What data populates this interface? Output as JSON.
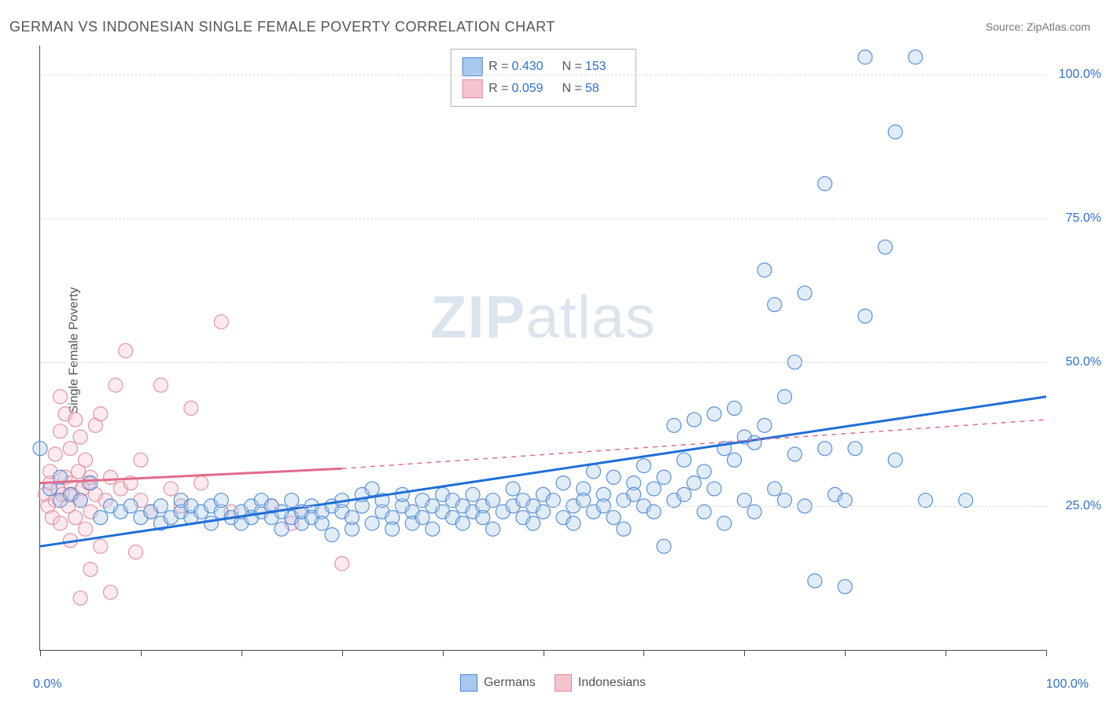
{
  "title": "GERMAN VS INDONESIAN SINGLE FEMALE POVERTY CORRELATION CHART",
  "source_prefix": "Source: ",
  "source": "ZipAtlas.com",
  "ylabel": "Single Female Poverty",
  "watermark_bold": "ZIP",
  "watermark_light": "atlas",
  "chart": {
    "type": "scatter",
    "background_color": "#ffffff",
    "grid_color": "#dcdcdc",
    "grid_dash": "4,4",
    "axis_color": "#4a4a4a",
    "label_color": "#555555",
    "value_color": "#2f6fd0",
    "title_fontsize": 18,
    "label_fontsize": 16,
    "xlim": [
      0,
      100
    ],
    "ylim": [
      0,
      105
    ],
    "yticks": [
      25,
      50,
      75,
      100
    ],
    "ytick_labels": [
      "25.0%",
      "50.0%",
      "75.0%",
      "100.0%"
    ],
    "xticks": [
      0,
      10,
      20,
      30,
      40,
      50,
      60,
      70,
      80,
      90,
      100
    ],
    "x_start_label": "0.0%",
    "x_end_label": "100.0%",
    "marker_radius": 9,
    "marker_stroke_width": 1.2,
    "marker_opacity_fill": 0.35,
    "marker_opacity_stroke": 0.9,
    "trend_line_width": 3,
    "series": [
      {
        "name": "Germans",
        "fill": "#a9c8ee",
        "stroke": "#4a86d2",
        "line_color": "#1f6fd8",
        "dash_extension_color": "#1f6fd8",
        "R_label": "R =",
        "R": "0.430",
        "N_label": "N =",
        "N": "153",
        "trend": {
          "x1": 0,
          "y1": 18,
          "x2": 100,
          "y2": 44,
          "dash_from_x": 100
        },
        "points": [
          [
            0,
            35
          ],
          [
            1,
            28
          ],
          [
            2,
            30
          ],
          [
            2,
            26
          ],
          [
            3,
            27
          ],
          [
            4,
            26
          ],
          [
            5,
            29
          ],
          [
            6,
            23
          ],
          [
            7,
            25
          ],
          [
            8,
            24
          ],
          [
            9,
            25
          ],
          [
            10,
            23
          ],
          [
            11,
            24
          ],
          [
            12,
            25
          ],
          [
            12,
            22
          ],
          [
            13,
            23
          ],
          [
            14,
            24
          ],
          [
            14,
            26
          ],
          [
            15,
            23
          ],
          [
            15,
            25
          ],
          [
            16,
            24
          ],
          [
            17,
            25
          ],
          [
            17,
            22
          ],
          [
            18,
            24
          ],
          [
            18,
            26
          ],
          [
            19,
            23
          ],
          [
            20,
            22
          ],
          [
            20,
            24
          ],
          [
            21,
            25
          ],
          [
            21,
            23
          ],
          [
            22,
            24
          ],
          [
            22,
            26
          ],
          [
            23,
            23
          ],
          [
            23,
            25
          ],
          [
            24,
            21
          ],
          [
            24,
            24
          ],
          [
            25,
            23
          ],
          [
            25,
            26
          ],
          [
            26,
            22
          ],
          [
            26,
            24
          ],
          [
            27,
            25
          ],
          [
            27,
            23
          ],
          [
            28,
            24
          ],
          [
            28,
            22
          ],
          [
            29,
            25
          ],
          [
            29,
            20
          ],
          [
            30,
            24
          ],
          [
            30,
            26
          ],
          [
            31,
            21
          ],
          [
            31,
            23
          ],
          [
            32,
            25
          ],
          [
            32,
            27
          ],
          [
            33,
            22
          ],
          [
            33,
            28
          ],
          [
            34,
            24
          ],
          [
            34,
            26
          ],
          [
            35,
            23
          ],
          [
            35,
            21
          ],
          [
            36,
            25
          ],
          [
            36,
            27
          ],
          [
            37,
            24
          ],
          [
            37,
            22
          ],
          [
            38,
            26
          ],
          [
            38,
            23
          ],
          [
            39,
            25
          ],
          [
            39,
            21
          ],
          [
            40,
            24
          ],
          [
            40,
            27
          ],
          [
            41,
            23
          ],
          [
            41,
            26
          ],
          [
            42,
            25
          ],
          [
            42,
            22
          ],
          [
            43,
            24
          ],
          [
            43,
            27
          ],
          [
            44,
            25
          ],
          [
            44,
            23
          ],
          [
            45,
            26
          ],
          [
            45,
            21
          ],
          [
            46,
            24
          ],
          [
            47,
            25
          ],
          [
            47,
            28
          ],
          [
            48,
            23
          ],
          [
            48,
            26
          ],
          [
            49,
            25
          ],
          [
            49,
            22
          ],
          [
            50,
            27
          ],
          [
            50,
            24
          ],
          [
            51,
            26
          ],
          [
            52,
            23
          ],
          [
            52,
            29
          ],
          [
            53,
            25
          ],
          [
            53,
            22
          ],
          [
            54,
            28
          ],
          [
            54,
            26
          ],
          [
            55,
            24
          ],
          [
            55,
            31
          ],
          [
            56,
            27
          ],
          [
            56,
            25
          ],
          [
            57,
            30
          ],
          [
            57,
            23
          ],
          [
            58,
            26
          ],
          [
            58,
            21
          ],
          [
            59,
            29
          ],
          [
            59,
            27
          ],
          [
            60,
            25
          ],
          [
            60,
            32
          ],
          [
            61,
            28
          ],
          [
            61,
            24
          ],
          [
            62,
            18
          ],
          [
            62,
            30
          ],
          [
            63,
            39
          ],
          [
            63,
            26
          ],
          [
            64,
            33
          ],
          [
            64,
            27
          ],
          [
            65,
            29
          ],
          [
            65,
            40
          ],
          [
            66,
            31
          ],
          [
            66,
            24
          ],
          [
            67,
            41
          ],
          [
            67,
            28
          ],
          [
            68,
            35
          ],
          [
            68,
            22
          ],
          [
            69,
            33
          ],
          [
            69,
            42
          ],
          [
            70,
            26
          ],
          [
            70,
            37
          ],
          [
            71,
            36
          ],
          [
            71,
            24
          ],
          [
            72,
            39
          ],
          [
            72,
            66
          ],
          [
            73,
            28
          ],
          [
            73,
            60
          ],
          [
            74,
            44
          ],
          [
            74,
            26
          ],
          [
            75,
            50
          ],
          [
            75,
            34
          ],
          [
            76,
            62
          ],
          [
            76,
            25
          ],
          [
            77,
            12
          ],
          [
            78,
            35
          ],
          [
            78,
            81
          ],
          [
            79,
            27
          ],
          [
            80,
            11
          ],
          [
            80,
            26
          ],
          [
            81,
            35
          ],
          [
            82,
            103
          ],
          [
            82,
            58
          ],
          [
            84,
            70
          ],
          [
            85,
            90
          ],
          [
            85,
            33
          ],
          [
            87,
            103
          ],
          [
            88,
            26
          ],
          [
            92,
            26
          ]
        ]
      },
      {
        "name": "Indonesians",
        "fill": "#f5c4cf",
        "stroke": "#e189a1",
        "line_color": "#e26b8a",
        "R_label": "R =",
        "R": "0.059",
        "N_label": "N =",
        "N": "58",
        "trend": {
          "x1": 0,
          "y1": 29,
          "x2": 30,
          "y2": 31.5,
          "dash_from_x": 30,
          "dash_x2": 100,
          "dash_y2": 40
        },
        "points": [
          [
            0.5,
            27
          ],
          [
            0.8,
            25
          ],
          [
            1,
            29
          ],
          [
            1,
            31
          ],
          [
            1.2,
            23
          ],
          [
            1.5,
            34
          ],
          [
            1.5,
            26
          ],
          [
            1.8,
            28
          ],
          [
            2,
            22
          ],
          [
            2,
            38
          ],
          [
            2,
            44
          ],
          [
            2.2,
            27
          ],
          [
            2.5,
            30
          ],
          [
            2.5,
            41
          ],
          [
            2.8,
            25
          ],
          [
            3,
            35
          ],
          [
            3,
            29
          ],
          [
            3,
            19
          ],
          [
            3.2,
            27
          ],
          [
            3.5,
            40
          ],
          [
            3.5,
            23
          ],
          [
            3.8,
            31
          ],
          [
            4,
            26
          ],
          [
            4,
            37
          ],
          [
            4,
            9
          ],
          [
            4.2,
            28
          ],
          [
            4.5,
            33
          ],
          [
            4.5,
            21
          ],
          [
            4.8,
            29
          ],
          [
            5,
            30
          ],
          [
            5,
            24
          ],
          [
            5,
            14
          ],
          [
            5.5,
            27
          ],
          [
            5.5,
            39
          ],
          [
            6,
            41
          ],
          [
            6,
            18
          ],
          [
            6.5,
            26
          ],
          [
            7,
            10
          ],
          [
            7,
            30
          ],
          [
            7.5,
            46
          ],
          [
            8,
            28
          ],
          [
            8.5,
            52
          ],
          [
            9,
            29
          ],
          [
            9.5,
            17
          ],
          [
            10,
            26
          ],
          [
            10,
            33
          ],
          [
            11,
            24
          ],
          [
            12,
            46
          ],
          [
            13,
            28
          ],
          [
            14,
            25
          ],
          [
            15,
            42
          ],
          [
            16,
            29
          ],
          [
            18,
            57
          ],
          [
            19,
            24
          ],
          [
            23,
            25
          ],
          [
            25,
            22
          ],
          [
            26,
            24
          ],
          [
            30,
            15
          ]
        ]
      }
    ]
  },
  "bottom_legend": [
    {
      "label": "Germans",
      "fill": "#a9c8ee",
      "stroke": "#4a86d2"
    },
    {
      "label": "Indonesians",
      "fill": "#f5c4cf",
      "stroke": "#e189a1"
    }
  ]
}
